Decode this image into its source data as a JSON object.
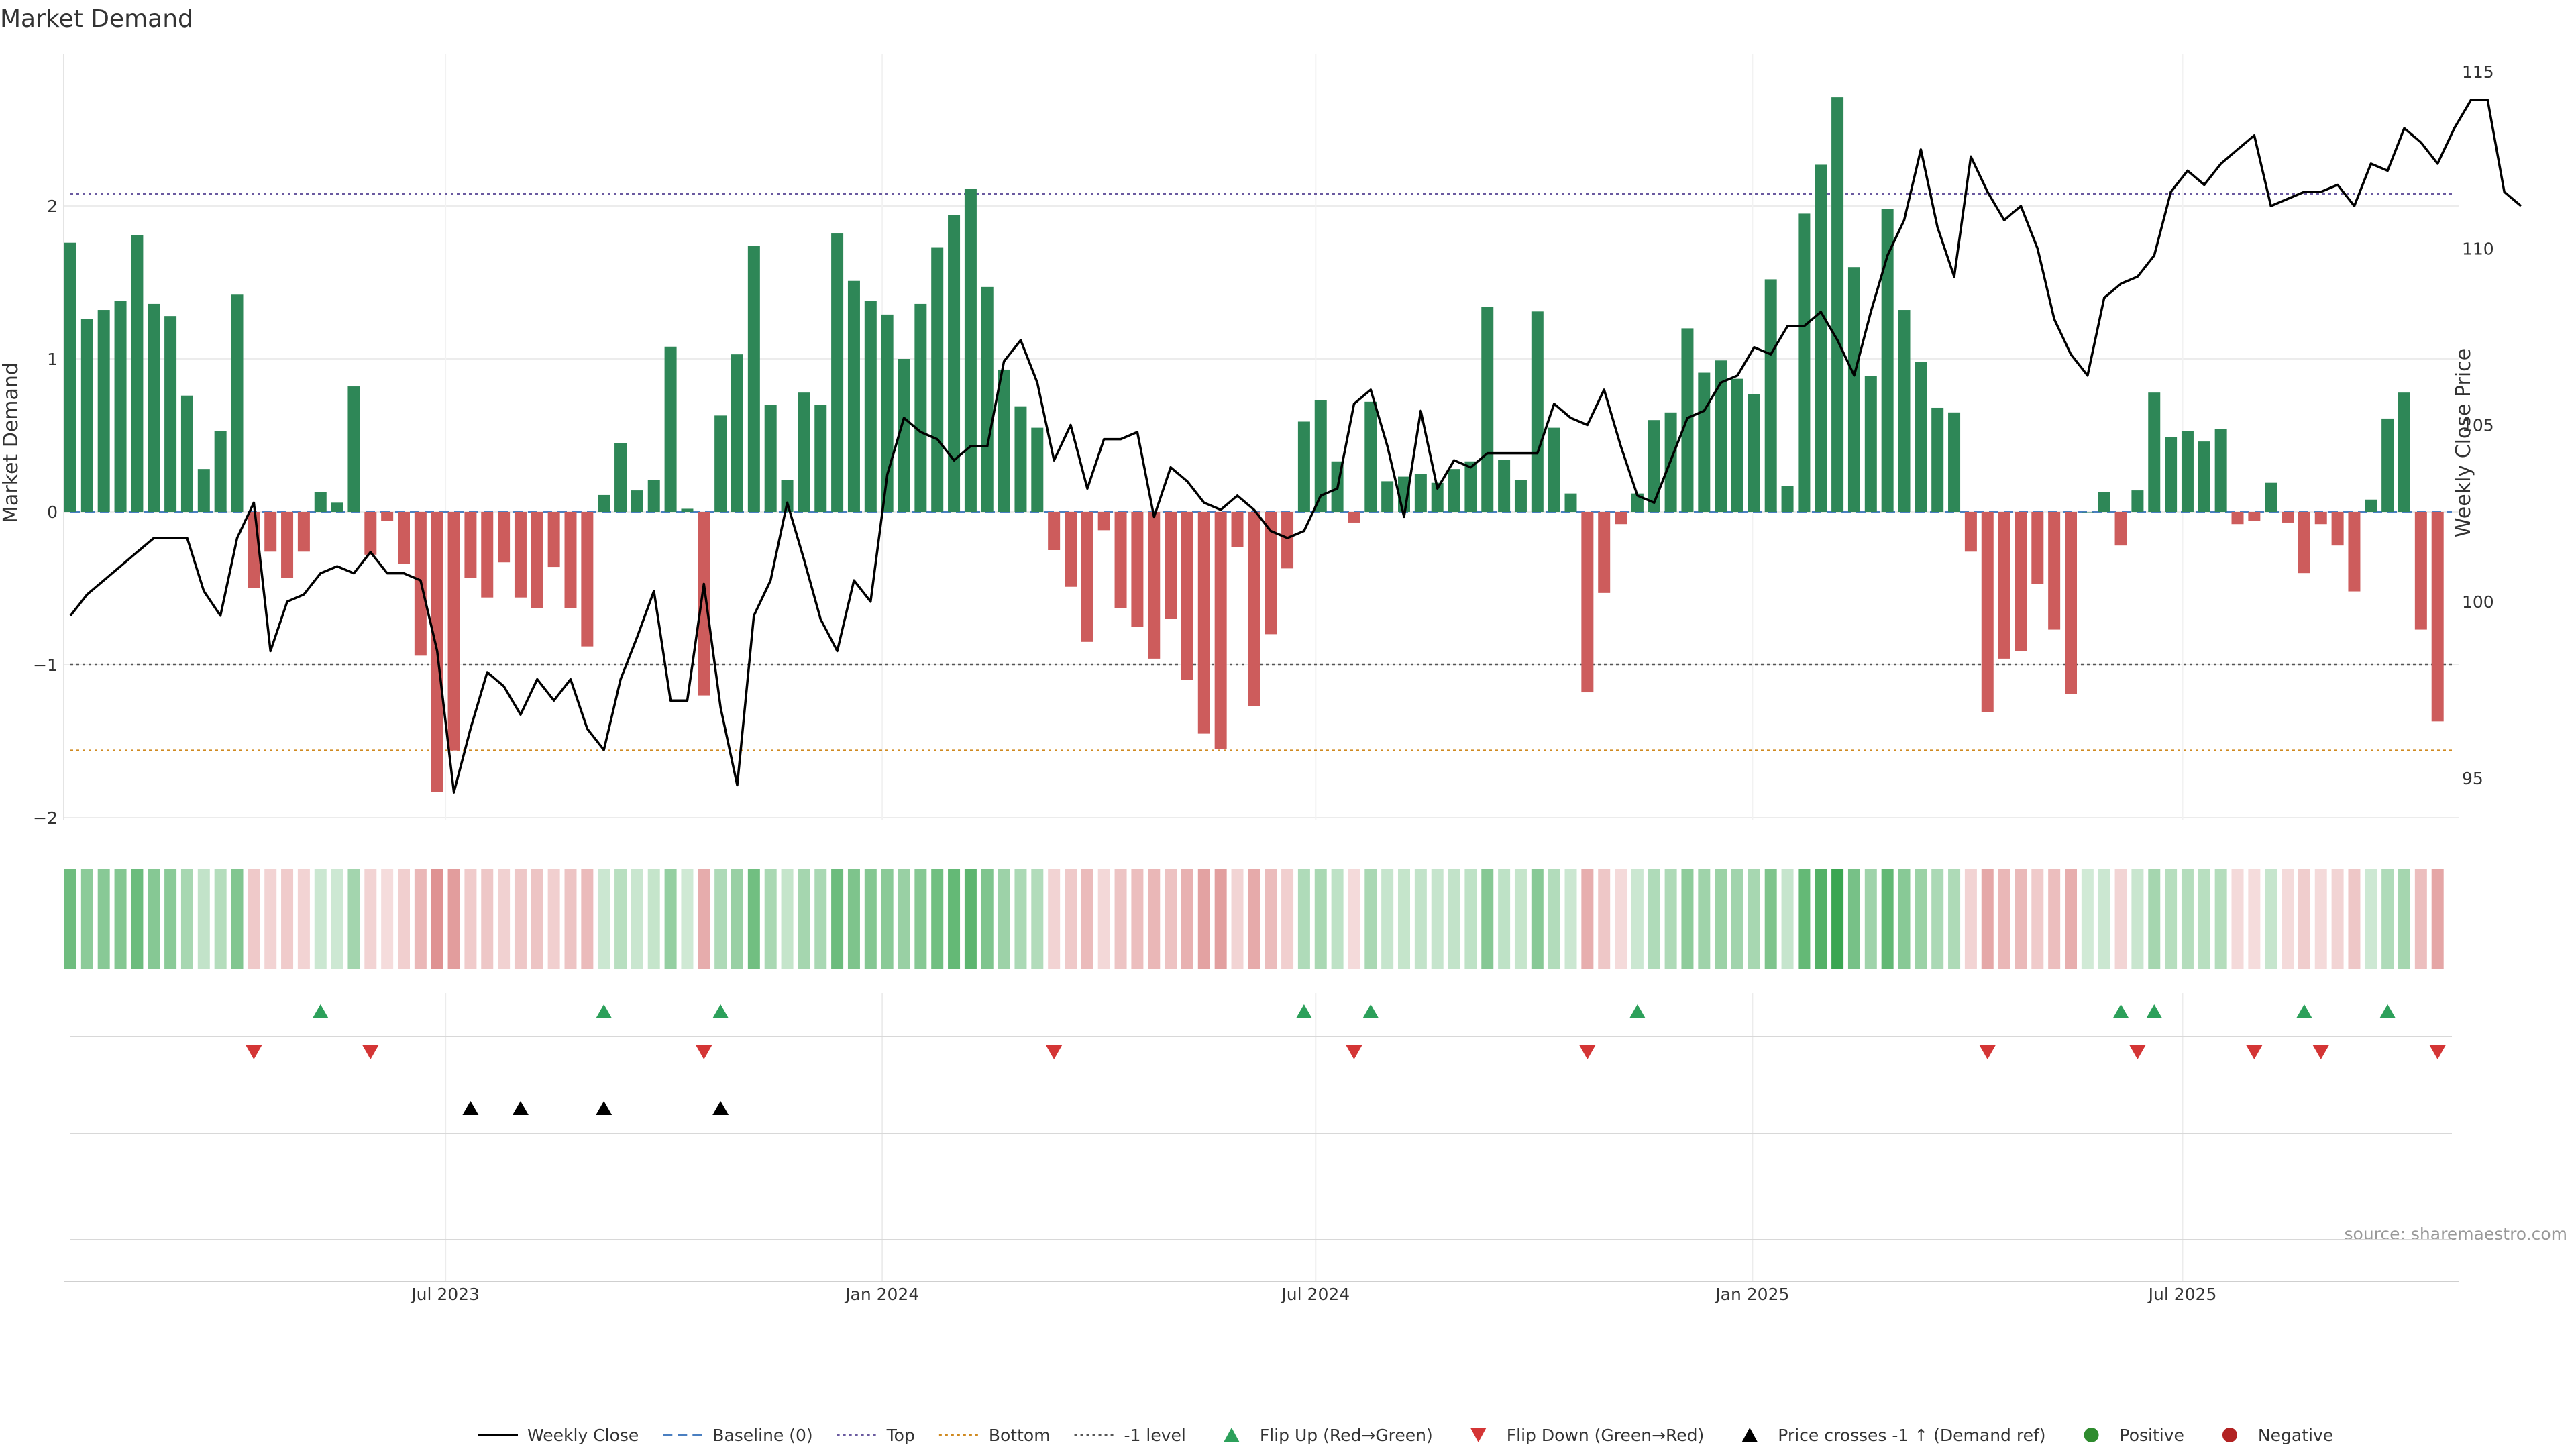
{
  "chart_data": {
    "type": "bar",
    "title": "Market Demand",
    "ylabel": "Market Demand",
    "y2label": "Weekly Close Price",
    "ylim": [
      -2.1,
      3.0
    ],
    "y2lim": [
      93.8,
      115.5
    ],
    "yticks": [
      -2,
      -1,
      0,
      1,
      2
    ],
    "yticks_labels": [
      "−2",
      "−1",
      "0",
      "1",
      "2"
    ],
    "y2ticks": [
      95,
      100,
      105,
      110,
      115
    ],
    "xticks": [
      {
        "label": "Jul 2023",
        "index": 22.5
      },
      {
        "label": "Jan 2024",
        "index": 48.7
      },
      {
        "label": "Jul 2024",
        "index": 74.7
      },
      {
        "label": "Jan 2025",
        "index": 100.9
      },
      {
        "label": "Jul 2025",
        "index": 126.7
      }
    ],
    "reference_lines": {
      "top": 2.08,
      "bottom": -1.56,
      "minus_one": -1.0,
      "baseline": 0
    },
    "demand": [
      1.76,
      1.26,
      1.32,
      1.38,
      1.81,
      1.36,
      1.28,
      0.76,
      0.28,
      0.53,
      1.42,
      -0.5,
      -0.26,
      -0.43,
      -0.26,
      0.13,
      0.06,
      0.82,
      -0.28,
      -0.06,
      -0.34,
      -0.94,
      -1.83,
      -1.56,
      -0.43,
      -0.56,
      -0.33,
      -0.56,
      -0.63,
      -0.36,
      -0.63,
      -0.88,
      0.11,
      0.45,
      0.14,
      0.21,
      1.08,
      0.02,
      -1.2,
      0.63,
      1.03,
      1.74,
      0.7,
      0.21,
      0.78,
      0.7,
      1.82,
      1.51,
      1.38,
      1.29,
      1.0,
      1.36,
      1.73,
      1.94,
      2.11,
      1.47,
      0.93,
      0.69,
      0.55,
      -0.25,
      -0.49,
      -0.85,
      -0.12,
      -0.63,
      -0.75,
      -0.96,
      -0.7,
      -1.1,
      -1.45,
      -1.55,
      -0.23,
      -1.27,
      -0.8,
      -0.37,
      0.59,
      0.73,
      0.33,
      -0.07,
      0.72,
      0.2,
      0.23,
      0.25,
      0.19,
      0.28,
      0.33,
      1.34,
      0.34,
      0.21,
      1.31,
      0.55,
      0.12,
      -1.18,
      -0.53,
      -0.08,
      0.12,
      0.6,
      0.65,
      1.2,
      0.91,
      0.99,
      0.87,
      0.77,
      1.52,
      0.17,
      1.95,
      2.27,
      2.71,
      1.6,
      0.89,
      1.98,
      1.32,
      0.98,
      0.68,
      0.65,
      -0.26,
      -1.31,
      -0.96,
      -0.91,
      -0.47,
      -0.77,
      -1.19,
      0.0,
      0.13,
      -0.22,
      0.14,
      0.78,
      0.49,
      0.53,
      0.46,
      0.54,
      -0.08,
      -0.06,
      0.19,
      -0.07,
      -0.4,
      -0.08,
      -0.22,
      -0.52,
      0.08,
      0.61,
      0.78,
      -0.77,
      -1.37
    ],
    "weekly_close": [
      99.6,
      100.2,
      100.6,
      101.0,
      101.4,
      101.8,
      101.8,
      101.8,
      100.3,
      99.6,
      101.8,
      102.8,
      98.6,
      100.0,
      100.2,
      100.8,
      101.0,
      100.8,
      101.4,
      100.8,
      100.8,
      100.6,
      98.6,
      94.6,
      96.4,
      98.0,
      97.6,
      96.8,
      97.8,
      97.2,
      97.8,
      96.4,
      95.8,
      97.8,
      99.0,
      100.3,
      97.2,
      97.2,
      100.5,
      97.0,
      94.8,
      99.6,
      100.6,
      102.8,
      101.2,
      99.5,
      98.6,
      100.6,
      100.0,
      103.6,
      105.2,
      104.8,
      104.6,
      104.0,
      104.4,
      104.4,
      106.8,
      107.4,
      106.2,
      104.0,
      105.0,
      103.2,
      104.6,
      104.6,
      104.8,
      102.4,
      103.8,
      103.4,
      102.8,
      102.6,
      103.0,
      102.6,
      102.0,
      101.8,
      102.0,
      103.0,
      103.2,
      105.6,
      106.0,
      104.4,
      102.4,
      105.4,
      103.2,
      104.0,
      103.8,
      104.2,
      104.2,
      104.2,
      104.2,
      105.6,
      105.2,
      105.0,
      106.0,
      104.4,
      103.0,
      102.8,
      104.0,
      105.2,
      105.4,
      106.2,
      106.4,
      107.2,
      107.0,
      107.8,
      107.8,
      108.2,
      107.4,
      106.4,
      108.2,
      109.8,
      110.8,
      112.8,
      110.6,
      109.2,
      112.6,
      111.6,
      110.8,
      111.2,
      110.0,
      108.0,
      107.0,
      106.4,
      108.6,
      109.0,
      109.2,
      109.8,
      111.6,
      112.2,
      111.8,
      112.4,
      112.8,
      113.2,
      111.2,
      111.4,
      111.6,
      111.6,
      111.8,
      111.2,
      112.4,
      112.2,
      113.4,
      113.0,
      112.4,
      113.4,
      114.2,
      114.2,
      111.6,
      111.2
    ],
    "flip_up_idx": [
      15,
      32,
      39,
      74,
      78,
      94,
      123,
      125,
      134,
      139
    ],
    "flip_down_idx": [
      11,
      18,
      38,
      59,
      77,
      91,
      115,
      124,
      131,
      135,
      142
    ],
    "price_cross_idx": [
      24,
      27,
      32,
      39
    ],
    "legend": [
      {
        "label": "Weekly Close",
        "kind": "line",
        "color": "#000000"
      },
      {
        "label": "Baseline (0)",
        "kind": "dashed",
        "color": "#4a7fc1"
      },
      {
        "label": "Top",
        "kind": "dotted",
        "color": "#6a5aa0"
      },
      {
        "label": "Bottom",
        "kind": "dotted",
        "color": "#d08a20"
      },
      {
        "label": "-1 level",
        "kind": "dotted",
        "color": "#555555"
      },
      {
        "label": "Flip Up (Red→Green)",
        "kind": "tri-up",
        "color": "#2ca05a"
      },
      {
        "label": "Flip Down (Green→Red)",
        "kind": "tri-down",
        "color": "#d43535"
      },
      {
        "label": "Price crosses -1 ↑ (Demand ref)",
        "kind": "tri-up",
        "color": "#000000"
      },
      {
        "label": "Positive",
        "kind": "dot",
        "color": "#2e8b2e"
      },
      {
        "label": "Negative",
        "kind": "dot",
        "color": "#b22222"
      }
    ],
    "source": "source: sharemaestro.com",
    "colors": {
      "positive": "#2e8757",
      "negative": "#cd5c5c",
      "price": "#000000"
    }
  }
}
